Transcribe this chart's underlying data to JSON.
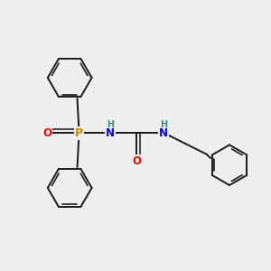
{
  "bg_color": "#eeeeee",
  "atom_colors": {
    "P": "#cc8800",
    "O": "#ff0000",
    "N": "#0000ee",
    "H_label": "#448888"
  },
  "bond_color": "#1a1a1a",
  "bond_width": 1.4
}
